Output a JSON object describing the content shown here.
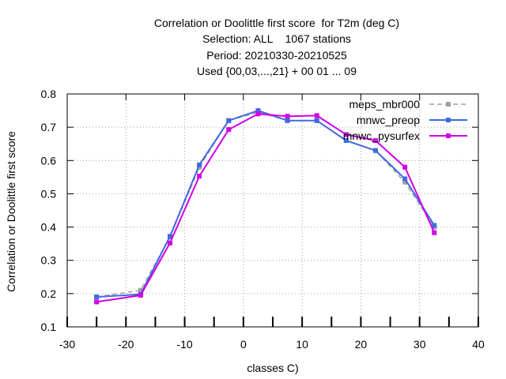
{
  "title_lines": [
    "Correlation or Doolittle first score  for T2m (deg C)",
    "Selection: ALL    1067 stations",
    "Period: 20210330-20210525",
    "Used {00,03,...,21} + 00 01 ... 09"
  ],
  "chart_data": {
    "type": "line",
    "title": "Correlation or Doolittle first score  for T2m (deg C)",
    "xlabel": "classes C)",
    "ylabel": "Correlation or Doolittle first score",
    "xlim": [
      -30,
      40
    ],
    "ylim": [
      0.1,
      0.8
    ],
    "xticks": [
      -30,
      -20,
      -10,
      0,
      10,
      20,
      30,
      40
    ],
    "yticks": [
      0.1,
      0.2,
      0.3,
      0.4,
      0.5,
      0.6,
      0.7,
      0.8
    ],
    "x_minor_ticks": [
      -25,
      -15,
      -5,
      5,
      15,
      25,
      35
    ],
    "grid": true,
    "legend_position": "top-right",
    "series": [
      {
        "name": "meps_mbr000",
        "color": "#a0a0a0",
        "dashed": true,
        "x": [
          -25,
          -17.5,
          -12.5,
          -7.5,
          -2.5,
          2.5,
          7.5,
          12.5,
          17.5,
          22.5,
          27.5,
          32.5
        ],
        "values": [
          0.19,
          0.21,
          0.37,
          0.58,
          0.72,
          0.745,
          0.72,
          0.72,
          0.66,
          0.63,
          0.535,
          0.4
        ]
      },
      {
        "name": "mnwc_preop",
        "color": "#4169e1",
        "dashed": false,
        "x": [
          -25,
          -17.5,
          -12.5,
          -7.5,
          -2.5,
          2.5,
          7.5,
          12.5,
          17.5,
          22.5,
          27.5,
          32.5
        ],
        "values": [
          0.19,
          0.198,
          0.372,
          0.587,
          0.72,
          0.75,
          0.72,
          0.72,
          0.66,
          0.63,
          0.545,
          0.405
        ]
      },
      {
        "name": "mnwc_pysurfex",
        "color": "#d000e8",
        "dashed": false,
        "x": [
          -25,
          -17.5,
          -12.5,
          -7.5,
          -2.5,
          2.5,
          7.5,
          12.5,
          17.5,
          22.5,
          27.5,
          32.5
        ],
        "values": [
          0.175,
          0.195,
          0.352,
          0.553,
          0.693,
          0.74,
          0.733,
          0.735,
          0.678,
          0.66,
          0.58,
          0.383
        ]
      }
    ]
  }
}
